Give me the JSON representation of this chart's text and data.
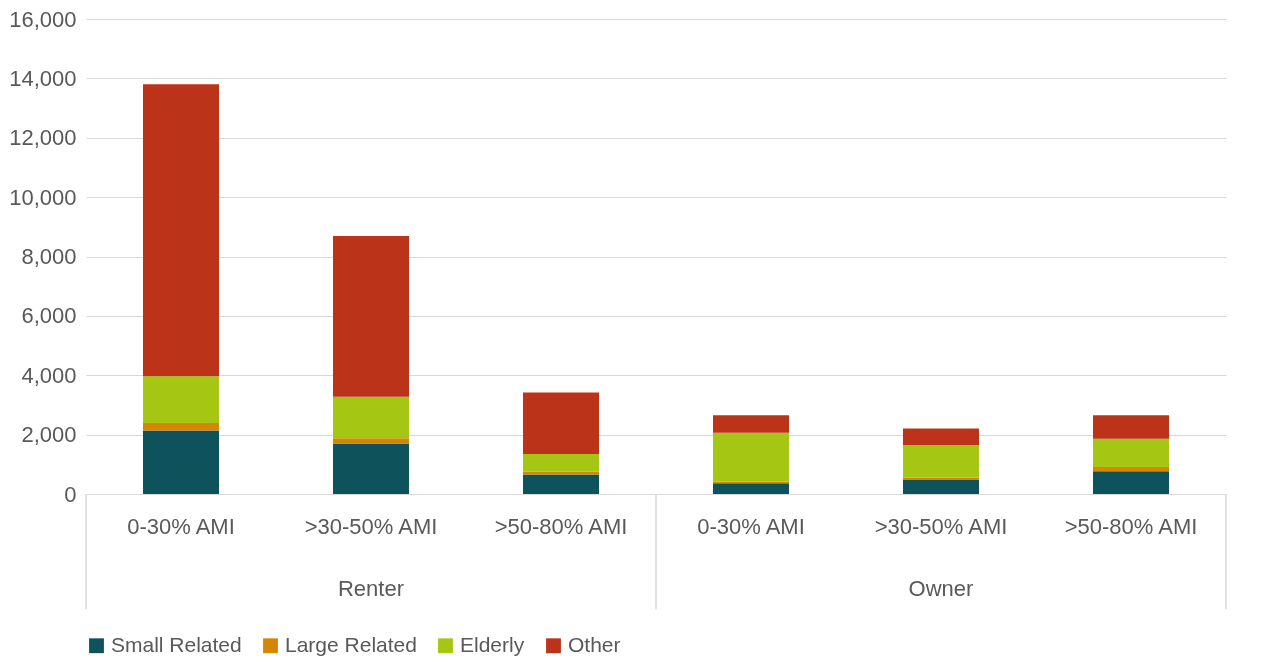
{
  "chart_data": {
    "type": "bar",
    "stacked": true,
    "categories": [
      "0-30% AMI",
      ">30-50% AMI",
      ">50-80% AMI",
      "0-30% AMI",
      ">30-50% AMI",
      ">50-80% AMI"
    ],
    "series": [
      {
        "name": "Small Related",
        "color": "#0e525c",
        "values": [
          2140,
          1700,
          660,
          360,
          470,
          770
        ]
      },
      {
        "name": "Large Related",
        "color": "#d68605",
        "values": [
          250,
          180,
          90,
          50,
          90,
          140
        ]
      },
      {
        "name": "Elderly",
        "color": "#a5c613",
        "values": [
          1580,
          1400,
          600,
          1650,
          1090,
          950
        ]
      },
      {
        "name": "Other",
        "color": "#bb3318",
        "values": [
          9830,
          5410,
          2070,
          590,
          560,
          790
        ]
      }
    ],
    "annotations": [
      "Renter",
      "Owner"
    ],
    "ylim": [
      0,
      16000
    ],
    "yticks": [
      0,
      {
        "value": 2000,
        "label": "2,000"
      },
      {
        "value": 4000,
        "label": "4,000"
      },
      {
        "value": 6000,
        "label": "6,000"
      },
      {
        "value": 8000,
        "label": "8,000"
      },
      {
        "value": 10000,
        "label": "10,000"
      },
      {
        "value": 12000,
        "label": "12,000"
      },
      {
        "value": 14000,
        "label": "14,000"
      },
      {
        "value": 16000,
        "label": "16,000"
      }
    ],
    "grid": "y",
    "legend": "bottom"
  }
}
